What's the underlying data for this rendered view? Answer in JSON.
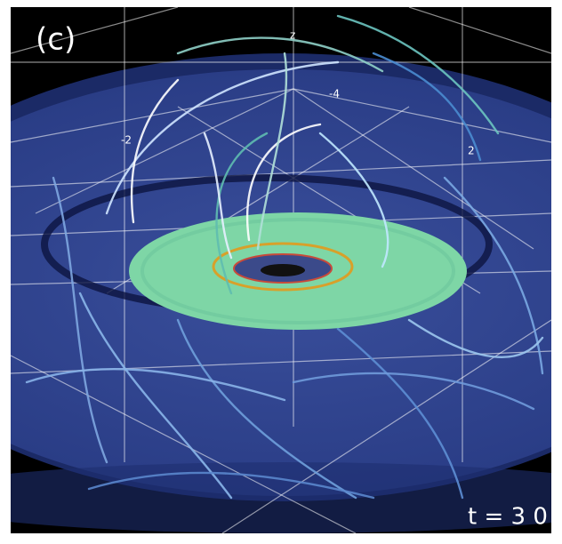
{
  "panel_label": "(c)",
  "axis": {
    "z": "z",
    "ticks": [
      "-4",
      "-2",
      "2"
    ]
  },
  "time_label": "t = 3 0"
}
